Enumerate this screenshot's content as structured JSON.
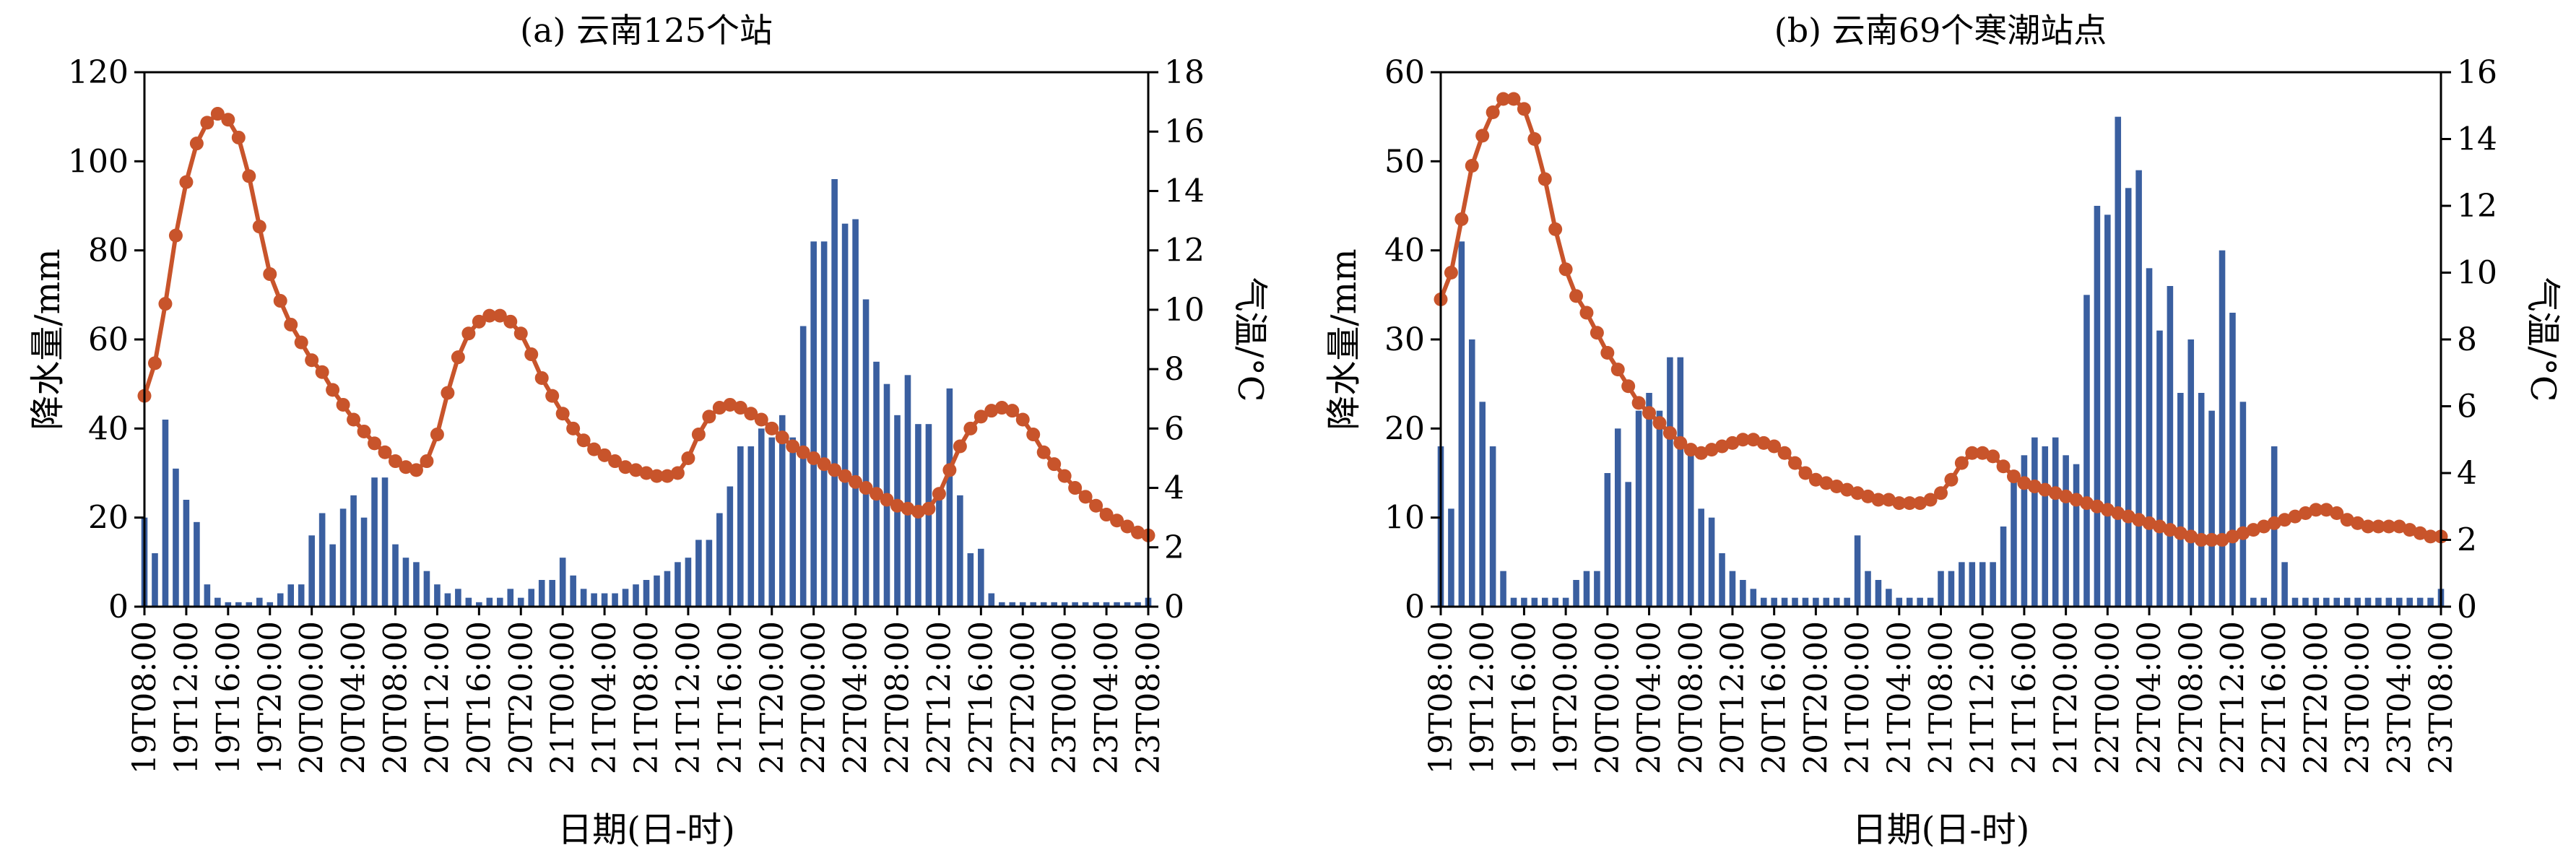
{
  "colors": {
    "bar": "#3A5FA0",
    "line": "#C8542B",
    "axis": "#000000"
  },
  "chart_data": [
    {
      "type": "bar+line",
      "title": "(a) 云南125个站",
      "xlabel": "日期(日-时)",
      "ylabel_left": "降水量/mm",
      "ylabel_right": "气温/°C",
      "ylim_left": [
        0,
        120
      ],
      "ylim_right": [
        0,
        18
      ],
      "yticks_left": [
        "0",
        "20",
        "40",
        "60",
        "80",
        "100",
        "120"
      ],
      "yticks_right": [
        "0",
        "2",
        "4",
        "6",
        "8",
        "10",
        "12",
        "14",
        "16",
        "18"
      ],
      "xticks": [
        "19T08:00",
        "19T12:00",
        "19T16:00",
        "19T20:00",
        "20T00:00",
        "20T04:00",
        "20T08:00",
        "20T12:00",
        "20T16:00",
        "20T20:00",
        "21T00:00",
        "21T04:00",
        "21T08:00",
        "21T12:00",
        "21T16:00",
        "21T20:00",
        "22T00:00",
        "22T04:00",
        "22T08:00",
        "22T12:00",
        "22T16:00",
        "22T20:00",
        "23T00:00",
        "23T04:00",
        "23T08:00"
      ],
      "x_hours": [
        0,
        96
      ],
      "precipitation_mm": [
        20,
        12,
        42,
        31,
        24,
        19,
        5,
        2,
        1,
        1,
        1,
        2,
        1,
        3,
        5,
        5,
        16,
        21,
        14,
        22,
        25,
        20,
        29,
        29,
        14,
        11,
        10,
        8,
        5,
        3,
        4,
        2,
        1,
        2,
        2,
        4,
        2,
        4,
        6,
        6,
        11,
        7,
        4,
        3,
        3,
        3,
        4,
        5,
        6,
        7,
        8,
        10,
        11,
        15,
        15,
        21,
        27,
        36,
        36,
        40,
        38,
        43,
        38,
        63,
        82,
        82,
        96,
        86,
        87,
        69,
        55,
        50,
        43,
        52,
        41,
        41,
        24,
        49,
        25,
        12,
        13,
        3,
        1,
        1,
        1,
        1,
        1,
        1,
        1,
        1,
        1,
        1,
        1,
        1,
        1,
        1,
        2
      ],
      "temperature_c": [
        7.1,
        8.2,
        10.2,
        12.5,
        14.3,
        15.6,
        16.3,
        16.6,
        16.4,
        15.8,
        14.5,
        12.8,
        11.2,
        10.3,
        9.5,
        8.9,
        8.3,
        7.9,
        7.3,
        6.8,
        6.3,
        5.9,
        5.5,
        5.2,
        4.9,
        4.7,
        4.6,
        4.9,
        5.8,
        7.2,
        8.4,
        9.2,
        9.6,
        9.8,
        9.8,
        9.6,
        9.2,
        8.5,
        7.7,
        7.1,
        6.5,
        6.0,
        5.6,
        5.3,
        5.1,
        4.9,
        4.7,
        4.6,
        4.5,
        4.4,
        4.4,
        4.5,
        5.0,
        5.8,
        6.4,
        6.7,
        6.8,
        6.7,
        6.5,
        6.3,
        6.0,
        5.7,
        5.4,
        5.2,
        5.0,
        4.8,
        4.6,
        4.4,
        4.2,
        4.0,
        3.8,
        3.6,
        3.4,
        3.3,
        3.2,
        3.3,
        3.8,
        4.6,
        5.4,
        6.0,
        6.4,
        6.6,
        6.7,
        6.6,
        6.3,
        5.8,
        5.2,
        4.8,
        4.4,
        4.0,
        3.7,
        3.4,
        3.1,
        2.9,
        2.7,
        2.5,
        2.4
      ]
    },
    {
      "type": "bar+line",
      "title": "(b) 云南69个寒潮站点",
      "xlabel": "日期(日-时)",
      "ylabel_left": "降水量/mm",
      "ylabel_right": "气温/°C",
      "ylim_left": [
        0,
        60
      ],
      "ylim_right": [
        0,
        16
      ],
      "yticks_left": [
        "0",
        "10",
        "20",
        "30",
        "40",
        "50",
        "60"
      ],
      "yticks_right": [
        "0",
        "2",
        "4",
        "6",
        "8",
        "10",
        "12",
        "14",
        "16"
      ],
      "xticks": [
        "19T08:00",
        "19T12:00",
        "19T16:00",
        "19T20:00",
        "20T00:00",
        "20T04:00",
        "20T08:00",
        "20T12:00",
        "20T16:00",
        "20T20:00",
        "21T00:00",
        "21T04:00",
        "21T08:00",
        "21T12:00",
        "21T16:00",
        "21T20:00",
        "22T00:00",
        "22T04:00",
        "22T08:00",
        "22T12:00",
        "22T16:00",
        "22T20:00",
        "23T00:00",
        "23T04:00",
        "23T08:00"
      ],
      "x_hours": [
        0,
        96
      ],
      "precipitation_mm": [
        18,
        11,
        41,
        30,
        23,
        18,
        4,
        1,
        1,
        1,
        1,
        1,
        1,
        3,
        4,
        4,
        15,
        20,
        14,
        22,
        24,
        22,
        28,
        28,
        18,
        11,
        10,
        6,
        4,
        3,
        2,
        1,
        1,
        1,
        1,
        1,
        1,
        1,
        1,
        1,
        8,
        4,
        3,
        2,
        1,
        1,
        1,
        1,
        4,
        4,
        5,
        5,
        5,
        5,
        9,
        14,
        17,
        19,
        18,
        19,
        17,
        16,
        35,
        45,
        44,
        55,
        47,
        49,
        38,
        31,
        36,
        24,
        30,
        24,
        22,
        40,
        33,
        23,
        1,
        1,
        18,
        5,
        1,
        1,
        1,
        1,
        1,
        1,
        1,
        1,
        1,
        1,
        1,
        1,
        1,
        1,
        2
      ],
      "temperature_c": [
        9.2,
        10.0,
        11.6,
        13.2,
        14.1,
        14.8,
        15.2,
        15.2,
        14.9,
        14.0,
        12.8,
        11.3,
        10.1,
        9.3,
        8.8,
        8.2,
        7.6,
        7.1,
        6.6,
        6.1,
        5.8,
        5.5,
        5.2,
        4.9,
        4.7,
        4.6,
        4.7,
        4.8,
        4.9,
        5.0,
        5.0,
        4.9,
        4.8,
        4.6,
        4.3,
        4.0,
        3.8,
        3.7,
        3.6,
        3.5,
        3.4,
        3.3,
        3.2,
        3.2,
        3.1,
        3.1,
        3.1,
        3.2,
        3.4,
        3.8,
        4.3,
        4.6,
        4.6,
        4.5,
        4.2,
        3.9,
        3.7,
        3.6,
        3.5,
        3.4,
        3.3,
        3.2,
        3.1,
        3.0,
        2.9,
        2.8,
        2.7,
        2.6,
        2.5,
        2.4,
        2.3,
        2.2,
        2.1,
        2.0,
        2.0,
        2.0,
        2.1,
        2.2,
        2.3,
        2.4,
        2.5,
        2.6,
        2.7,
        2.8,
        2.9,
        2.9,
        2.8,
        2.6,
        2.5,
        2.4,
        2.4,
        2.4,
        2.4,
        2.3,
        2.2,
        2.1,
        2.1
      ]
    }
  ]
}
